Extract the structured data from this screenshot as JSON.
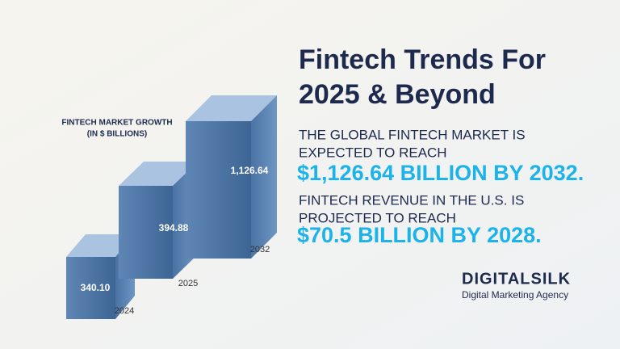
{
  "header": {
    "title_lines": [
      "Fintech Trends For",
      "2025 & Beyond"
    ]
  },
  "chart": {
    "label_lines": [
      "FINTECH MARKET GROWTH",
      "(IN $ BILLIONS)"
    ],
    "bars": [
      {
        "year": "2024",
        "value": "340.10"
      },
      {
        "year": "2025",
        "value": "394.88"
      },
      {
        "year": "2032",
        "value": "1,126.64"
      }
    ]
  },
  "stats": [
    {
      "lines": [
        "THE GLOBAL FINTECH MARKET IS",
        "EXPECTED TO REACH"
      ],
      "highlight": "$1,126.64 BILLION BY 2032."
    },
    {
      "lines": [
        "FINTECH REVENUE IN THE U.S.  IS",
        "PROJECTED TO REACH"
      ],
      "highlight": "$70.5 BILLION BY 2028."
    }
  ],
  "brand": {
    "name": "DIGITALSILK",
    "tagline": "Digital Marketing Agency"
  }
}
